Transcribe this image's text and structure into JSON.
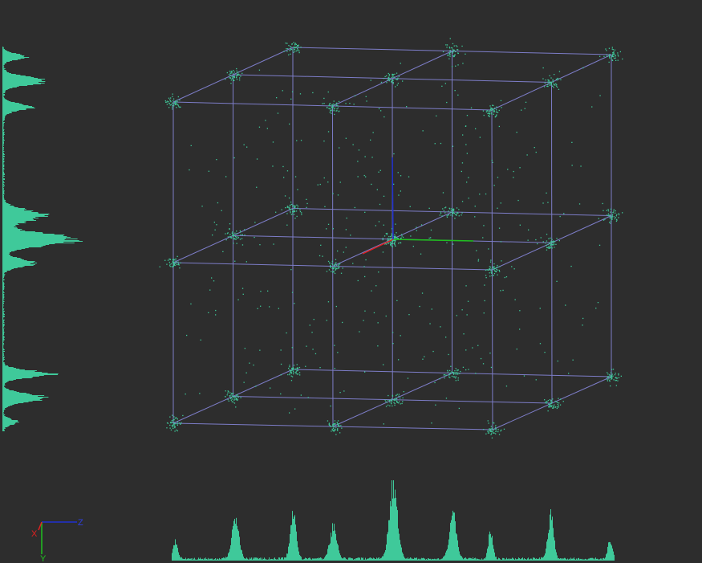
{
  "scene": {
    "background_color": "#2d2d2d",
    "point_color": "#3fc99a",
    "grid_color": "#7d7dc8",
    "grid_divisions": 2,
    "cluster_grid": 3,
    "axis_colors": {
      "x": "#e02020",
      "y": "#20c020",
      "z": "#2030d0"
    }
  },
  "orientation_gizmo": {
    "x_label": "X",
    "y_label": "Y",
    "z_label": "Z"
  },
  "histograms": {
    "left": {
      "orientation": "vertical",
      "peaks": 8
    },
    "bottom": {
      "orientation": "horizontal",
      "peaks": 9
    }
  }
}
